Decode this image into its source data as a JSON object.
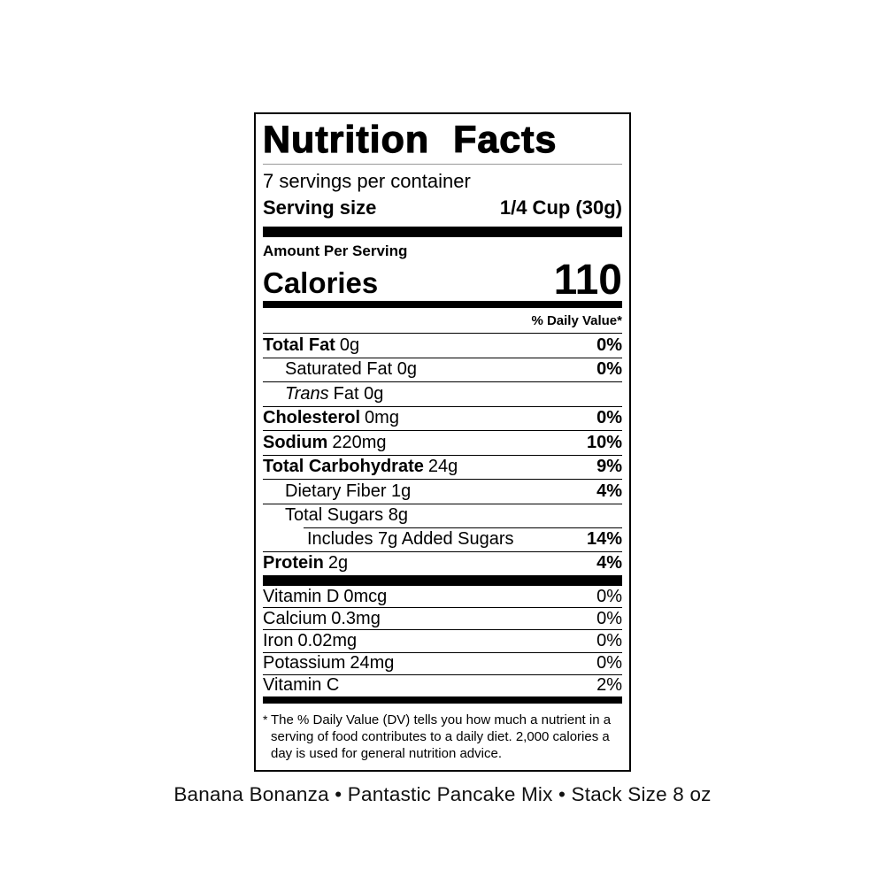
{
  "colors": {
    "text": "#000000",
    "background": "#ffffff"
  },
  "label": {
    "title": "Nutrition Facts",
    "servings_per_container": "7 servings per container",
    "serving_size_label": "Serving size",
    "serving_size_value": "1/4 Cup (30g)",
    "amount_per_serving": "Amount Per Serving",
    "calories_label": "Calories",
    "calories_value": "110",
    "daily_value_header": "% Daily Value*",
    "nutrients": [
      {
        "bold": "Total Fat",
        "italic": "",
        "regular": "0g",
        "dv": "0%"
      },
      {
        "bold": "",
        "italic": "",
        "regular": "Saturated Fat 0g",
        "dv": "0%"
      },
      {
        "bold": "",
        "italic": "Trans",
        "regular": "Fat 0g",
        "dv": ""
      },
      {
        "bold": "Cholesterol",
        "italic": "",
        "regular": "0mg",
        "dv": "0%"
      },
      {
        "bold": "Sodium",
        "italic": "",
        "regular": "220mg",
        "dv": "10%"
      },
      {
        "bold": "Total Carbohydrate",
        "italic": "",
        "regular": "24g",
        "dv": "9%"
      },
      {
        "bold": "",
        "italic": "",
        "regular": "Dietary Fiber 1g",
        "dv": "4%"
      },
      {
        "bold": "",
        "italic": "",
        "regular": "Total Sugars 8g",
        "dv": ""
      },
      {
        "bold": "",
        "italic": "",
        "regular": "Includes 7g Added Sugars",
        "dv": "14%"
      },
      {
        "bold": "Protein",
        "italic": "",
        "regular": "2g",
        "dv": "4%"
      }
    ],
    "micronutrients": [
      {
        "name": "Vitamin D",
        "amount": "0mcg",
        "dv": "0%"
      },
      {
        "name": "Calcium",
        "amount": "0.3mg",
        "dv": "0%"
      },
      {
        "name": "Iron",
        "amount": "0.02mg",
        "dv": "0%"
      },
      {
        "name": "Potassium",
        "amount": "24mg",
        "dv": "0%"
      },
      {
        "name": "Vitamin C",
        "amount": "",
        "dv": "2%"
      }
    ],
    "footnote_marker": "*",
    "footnote": "The % Daily Value (DV) tells you how much a nutrient in a serving of food contributes to a daily diet. 2,000 calories a day is used for general nutrition advice."
  },
  "caption": "Banana Bonanza • Pantastic Pancake Mix • Stack Size 8 oz"
}
